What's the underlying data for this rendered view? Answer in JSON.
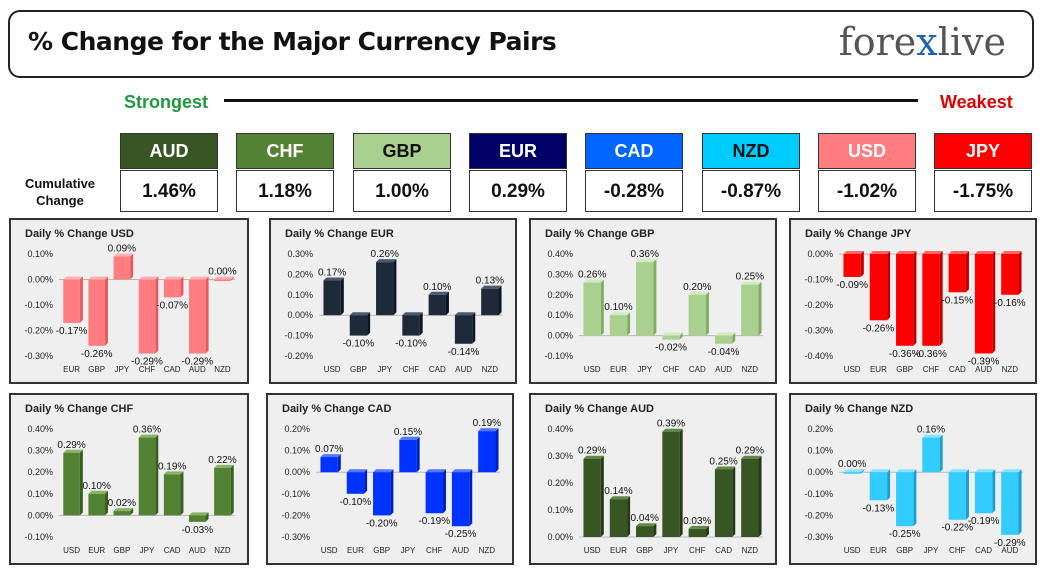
{
  "header": {
    "title": "% Change for the Major Currency Pairs",
    "logo_left": "fore",
    "logo_x": "x",
    "logo_right": "live"
  },
  "scale": {
    "strongest": "Strongest",
    "weakest": "Weakest"
  },
  "cumulative_label": [
    "Cumulative",
    "Change"
  ],
  "ranking": [
    {
      "currency": "AUD",
      "value": "1.46%",
      "bg": "#375623",
      "fg": "#ffffff"
    },
    {
      "currency": "CHF",
      "value": "1.18%",
      "bg": "#548235",
      "fg": "#ffffff"
    },
    {
      "currency": "GBP",
      "value": "1.00%",
      "bg": "#a9d08e",
      "fg": "#111111"
    },
    {
      "currency": "EUR",
      "value": "0.29%",
      "bg": "#000066",
      "fg": "#ffffff"
    },
    {
      "currency": "CAD",
      "value": "-0.28%",
      "bg": "#0066ff",
      "fg": "#ffffff"
    },
    {
      "currency": "NZD",
      "value": "-0.87%",
      "bg": "#00ccff",
      "fg": "#111111"
    },
    {
      "currency": "USD",
      "value": "-1.02%",
      "bg": "#ff7c80",
      "fg": "#ffffff"
    },
    {
      "currency": "JPY",
      "value": "-1.75%",
      "bg": "#ff0000",
      "fg": "#ffffff"
    }
  ],
  "chart_data": [
    {
      "type": "bar",
      "title": "Daily % Change USD",
      "categories": [
        "EUR",
        "GBP",
        "JPY",
        "CHF",
        "CAD",
        "AUD",
        "NZD"
      ],
      "values": [
        -0.17,
        -0.26,
        0.09,
        -0.29,
        -0.07,
        -0.29,
        0.0
      ],
      "labels": [
        "-0.17%",
        "-0.26%",
        "0.09%",
        "-0.29%",
        "-0.07%",
        "-0.29%",
        "0.00%"
      ],
      "ylim": [
        -0.3,
        0.1
      ],
      "ticks": [
        0.1,
        0.0,
        -0.1,
        -0.2,
        -0.3
      ],
      "tick_labels": [
        "0.10%",
        "0.00%",
        "-0.10%",
        "-0.20%",
        "-0.30%"
      ],
      "color": "#ff7c80",
      "side": "#e25c60",
      "top": "#ffb0b2"
    },
    {
      "type": "bar",
      "title": "Daily % Change EUR",
      "categories": [
        "USD",
        "GBP",
        "JPY",
        "CHF",
        "CAD",
        "AUD",
        "NZD"
      ],
      "values": [
        0.17,
        -0.1,
        0.26,
        -0.1,
        0.1,
        -0.14,
        0.13
      ],
      "labels": [
        "0.17%",
        "-0.10%",
        "0.26%",
        "-0.10%",
        "0.10%",
        "-0.14%",
        "0.13%"
      ],
      "ylim": [
        -0.2,
        0.3
      ],
      "ticks": [
        0.3,
        0.2,
        0.1,
        0.0,
        -0.1,
        -0.2
      ],
      "tick_labels": [
        "0.30%",
        "0.20%",
        "0.10%",
        "0.00%",
        "-0.10%",
        "-0.20%"
      ],
      "color": "#1e2a3a",
      "side": "#0d1520",
      "top": "#4a5a70"
    },
    {
      "type": "bar",
      "title": "Daily % Change GBP",
      "categories": [
        "USD",
        "EUR",
        "JPY",
        "CHF",
        "CAD",
        "AUD",
        "NZD"
      ],
      "values": [
        0.26,
        0.1,
        0.36,
        -0.02,
        0.2,
        -0.04,
        0.25
      ],
      "labels": [
        "0.26%",
        "0.10%",
        "0.36%",
        "-0.02%",
        "0.20%",
        "-0.04%",
        "0.25%"
      ],
      "ylim": [
        -0.1,
        0.4
      ],
      "ticks": [
        0.4,
        0.3,
        0.2,
        0.1,
        0.0,
        -0.1
      ],
      "tick_labels": [
        "0.40%",
        "0.30%",
        "0.20%",
        "0.10%",
        "0.00%",
        "-0.10%"
      ],
      "color": "#a9d08e",
      "side": "#80ad62",
      "top": "#d2ecbf"
    },
    {
      "type": "bar",
      "title": "Daily % Change JPY",
      "categories": [
        "USD",
        "EUR",
        "GBP",
        "CHF",
        "CAD",
        "AUD",
        "NZD"
      ],
      "values": [
        -0.09,
        -0.26,
        -0.36,
        -0.36,
        -0.15,
        -0.39,
        -0.16
      ],
      "labels": [
        "-0.09%",
        "-0.26%",
        "-0.36%",
        "-0.36%",
        "-0.15%",
        "-0.39%",
        "-0.16%"
      ],
      "ylim": [
        -0.4,
        0.0
      ],
      "ticks": [
        0.0,
        -0.1,
        -0.2,
        -0.3,
        -0.4
      ],
      "tick_labels": [
        "0.00%",
        "-0.10%",
        "-0.20%",
        "-0.30%",
        "-0.40%"
      ],
      "color": "#ff0000",
      "side": "#c00000",
      "top": "#ff6666"
    },
    {
      "type": "bar",
      "title": "Daily % Change CHF",
      "categories": [
        "USD",
        "EUR",
        "GBP",
        "JPY",
        "CAD",
        "AUD",
        "NZD"
      ],
      "values": [
        0.29,
        0.1,
        0.02,
        0.36,
        0.19,
        -0.03,
        0.22
      ],
      "labels": [
        "0.29%",
        "0.10%",
        "0.02%",
        "0.36%",
        "0.19%",
        "-0.03%",
        "0.22%"
      ],
      "ylim": [
        -0.1,
        0.4
      ],
      "ticks": [
        0.4,
        0.3,
        0.2,
        0.1,
        0.0,
        -0.1
      ],
      "tick_labels": [
        "0.40%",
        "0.30%",
        "0.20%",
        "0.10%",
        "0.00%",
        "-0.10%"
      ],
      "color": "#548235",
      "side": "#3a5e22",
      "top": "#86b564"
    },
    {
      "type": "bar",
      "title": "Daily % Change CAD",
      "categories": [
        "USD",
        "EUR",
        "GBP",
        "JPY",
        "CHF",
        "AUD",
        "NZD"
      ],
      "values": [
        0.07,
        -0.1,
        -0.2,
        0.15,
        -0.19,
        -0.25,
        0.19
      ],
      "labels": [
        "0.07%",
        "-0.10%",
        "-0.20%",
        "0.15%",
        "-0.19%",
        "-0.25%",
        "0.19%"
      ],
      "ylim": [
        -0.3,
        0.2
      ],
      "ticks": [
        0.2,
        0.1,
        0.0,
        -0.1,
        -0.2,
        -0.3
      ],
      "tick_labels": [
        "0.20%",
        "0.10%",
        "0.00%",
        "-0.10%",
        "-0.20%",
        "-0.30%"
      ],
      "color": "#0033ff",
      "side": "#0022bb",
      "top": "#5577ff"
    },
    {
      "type": "bar",
      "title": "Daily % Change AUD",
      "categories": [
        "USD",
        "EUR",
        "GBP",
        "JPY",
        "CHF",
        "CAD",
        "NZD"
      ],
      "values": [
        0.29,
        0.14,
        0.04,
        0.39,
        0.03,
        0.25,
        0.29
      ],
      "labels": [
        "0.29%",
        "0.14%",
        "0.04%",
        "0.39%",
        "0.03%",
        "0.25%",
        "0.29%"
      ],
      "ylim": [
        0.0,
        0.4
      ],
      "ticks": [
        0.4,
        0.3,
        0.2,
        0.1,
        0.0
      ],
      "tick_labels": [
        "0.40%",
        "0.30%",
        "0.20%",
        "0.10%",
        "0.00%"
      ],
      "color": "#375623",
      "side": "#243a16",
      "top": "#5f8a45"
    },
    {
      "type": "bar",
      "title": "Daily % Change NZD",
      "categories": [
        "USD",
        "EUR",
        "GBP",
        "JPY",
        "CHF",
        "CAD",
        "AUD"
      ],
      "values": [
        0.0,
        -0.13,
        -0.25,
        0.16,
        -0.22,
        -0.19,
        -0.29
      ],
      "labels": [
        "0.00%",
        "-0.13%",
        "-0.25%",
        "0.16%",
        "-0.22%",
        "-0.19%",
        "-0.29%"
      ],
      "ylim": [
        -0.3,
        0.2
      ],
      "ticks": [
        0.2,
        0.1,
        0.0,
        -0.1,
        -0.2,
        -0.3
      ],
      "tick_labels": [
        "0.20%",
        "0.10%",
        "0.00%",
        "-0.10%",
        "-0.20%",
        "-0.30%"
      ],
      "color": "#33ccff",
      "side": "#1a9fd0",
      "top": "#88e4ff"
    }
  ]
}
